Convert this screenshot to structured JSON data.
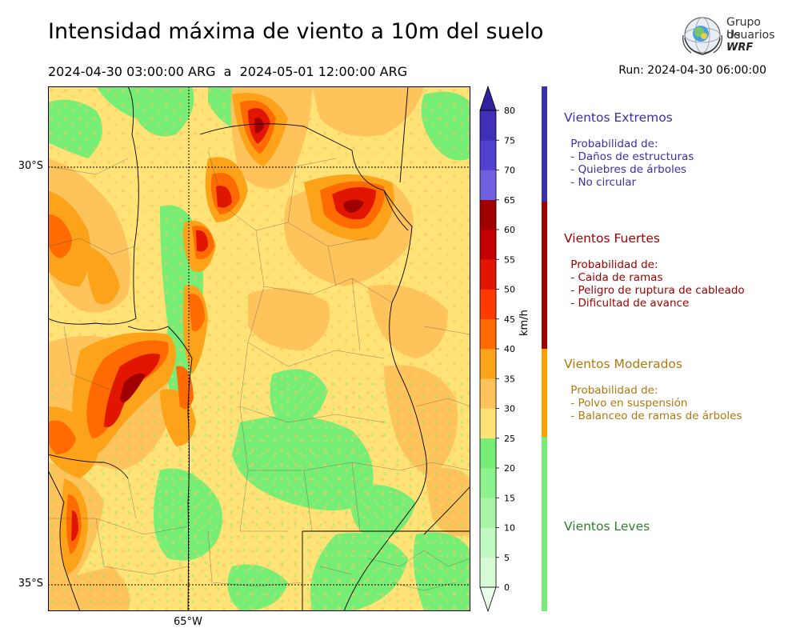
{
  "header": {
    "title": "Intensidad máxima de viento a 10m del suelo",
    "period": "2024-04-30 03:00:00 ARG  a  2024-05-01 12:00:00 ARG",
    "run": "Run: 2024-04-30 06:00:00"
  },
  "logo": {
    "line1": "Grupo de",
    "line2": "Usuarios",
    "line3": "WRF"
  },
  "axes": {
    "lat_labels": [
      "30°S",
      "35°S"
    ],
    "lon_labels": [
      "65°W"
    ]
  },
  "colorbar": {
    "unit": "km/h",
    "ticks": [
      "0",
      "5",
      "10",
      "15",
      "20",
      "25",
      "30",
      "35",
      "40",
      "45",
      "50",
      "55",
      "60",
      "65",
      "70",
      "75",
      "80"
    ],
    "colors": [
      "#eaffea",
      "#d5fcd5",
      "#c0fac0",
      "#a8f5a8",
      "#8ef28e",
      "#76ee76",
      "#ffe377",
      "#fec35a",
      "#fca31a",
      "#ff6b00",
      "#ff3a00",
      "#e21600",
      "#c40000",
      "#a00000",
      "#7060e0",
      "#5040d0",
      "#4030b8",
      "#3020a0"
    ]
  },
  "categories": [
    {
      "title": "Vientos Extremos",
      "color": "#3a30a8",
      "bar_color": "#3a30b0",
      "body": " Probabilidad de:\n - Daños de estructuras\n - Quiebres de árboles\n - No circular"
    },
    {
      "title": "Vientos Fuertes",
      "color": "#a00000",
      "bar_color": "#a00000",
      "body": " Probabilidad de:\n - Caida de ramas\n - Peligro de ruptura de cableado\n - Dificultad de avance"
    },
    {
      "title": "Vientos Moderados",
      "color": "#b07810",
      "bar_color": "#ffa000",
      "body": " Probabilidad de:\n - Polvo en suspensión\n - Balanceo de ramas de árboles"
    },
    {
      "title": "Vientos Leves",
      "color": "#2e8030",
      "bar_color": "#76ee76",
      "body": ""
    }
  ]
}
